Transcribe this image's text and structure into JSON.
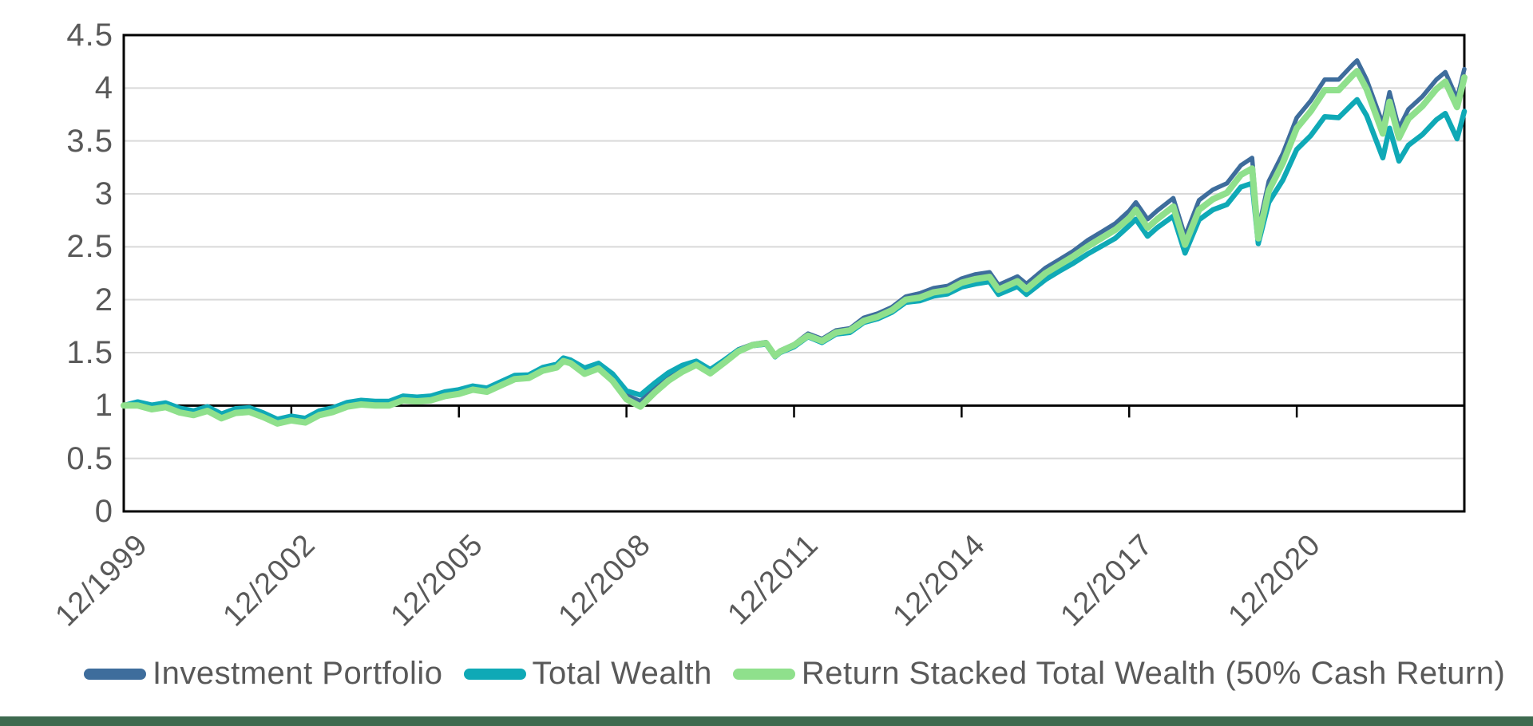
{
  "chart_data": {
    "type": "line",
    "title": "",
    "xlabel": "",
    "ylabel": "",
    "xlim": [
      1999.92,
      2023.92
    ],
    "ylim": [
      0,
      4.5
    ],
    "grid": "horizontal",
    "legend_position": "bottom",
    "axis_crosses_at_y": 1,
    "y_tick_labels": [
      "0",
      "0.5",
      "1",
      "1.5",
      "2",
      "2.5",
      "3",
      "3.5",
      "4",
      "4.5"
    ],
    "y_tick_values": [
      0,
      0.5,
      1,
      1.5,
      2,
      2.5,
      3,
      3.5,
      4,
      4.5
    ],
    "x_tick_labels": [
      "12/1999",
      "12/2002",
      "12/2005",
      "12/2008",
      "12/2011",
      "12/2014",
      "12/2017",
      "12/2020"
    ],
    "x_tick_values": [
      1999.92,
      2002.92,
      2005.92,
      2008.92,
      2011.92,
      2014.92,
      2017.92,
      2020.92
    ],
    "x": [
      1999.92,
      2000.17,
      2000.42,
      2000.67,
      2000.92,
      2001.17,
      2001.42,
      2001.67,
      2001.92,
      2002.17,
      2002.42,
      2002.67,
      2002.92,
      2003.17,
      2003.42,
      2003.67,
      2003.92,
      2004.17,
      2004.42,
      2004.67,
      2004.92,
      2005.17,
      2005.42,
      2005.67,
      2005.92,
      2006.17,
      2006.42,
      2006.67,
      2006.92,
      2007.17,
      2007.42,
      2007.67,
      2007.79,
      2007.92,
      2008.17,
      2008.42,
      2008.67,
      2008.92,
      2009.17,
      2009.42,
      2009.67,
      2009.92,
      2010.17,
      2010.42,
      2010.67,
      2010.92,
      2011.17,
      2011.42,
      2011.58,
      2011.67,
      2011.92,
      2012.17,
      2012.42,
      2012.67,
      2012.92,
      2013.17,
      2013.42,
      2013.67,
      2013.92,
      2014.17,
      2014.42,
      2014.67,
      2014.92,
      2015.17,
      2015.42,
      2015.58,
      2015.92,
      2016.08,
      2016.42,
      2016.67,
      2016.92,
      2017.17,
      2017.42,
      2017.67,
      2017.92,
      2018.04,
      2018.25,
      2018.42,
      2018.71,
      2018.92,
      2019.17,
      2019.42,
      2019.67,
      2019.92,
      2020.12,
      2020.23,
      2020.42,
      2020.67,
      2020.92,
      2021.17,
      2021.42,
      2021.67,
      2021.92,
      2022.0,
      2022.17,
      2022.46,
      2022.58,
      2022.75,
      2022.92,
      2023.17,
      2023.42,
      2023.58,
      2023.79,
      2023.92
    ],
    "series": [
      {
        "name": "Investment Portfolio",
        "color": "#3E6D9C",
        "line_width": 5.5,
        "values": [
          1.0,
          1.02,
          0.99,
          1.01,
          0.96,
          0.93,
          0.97,
          0.9,
          0.95,
          0.96,
          0.91,
          0.85,
          0.88,
          0.86,
          0.93,
          0.96,
          1.01,
          1.03,
          1.02,
          1.02,
          1.07,
          1.06,
          1.07,
          1.11,
          1.13,
          1.17,
          1.15,
          1.21,
          1.27,
          1.28,
          1.35,
          1.38,
          1.44,
          1.42,
          1.33,
          1.38,
          1.27,
          1.1,
          1.04,
          1.16,
          1.27,
          1.35,
          1.41,
          1.33,
          1.43,
          1.53,
          1.58,
          1.6,
          1.48,
          1.52,
          1.58,
          1.68,
          1.63,
          1.71,
          1.73,
          1.83,
          1.87,
          1.93,
          2.03,
          2.06,
          2.11,
          2.13,
          2.2,
          2.24,
          2.26,
          2.14,
          2.22,
          2.15,
          2.3,
          2.38,
          2.46,
          2.56,
          2.64,
          2.72,
          2.84,
          2.92,
          2.76,
          2.84,
          2.96,
          2.6,
          2.94,
          3.04,
          3.1,
          3.27,
          3.34,
          2.66,
          3.12,
          3.38,
          3.72,
          3.88,
          4.08,
          4.08,
          4.22,
          4.26,
          4.08,
          3.66,
          3.96,
          3.62,
          3.8,
          3.92,
          4.08,
          4.15,
          3.9,
          4.18
        ]
      },
      {
        "name": "Total Wealth",
        "color": "#0FA9B6",
        "line_width": 6.5,
        "values": [
          1.0,
          1.035,
          1.005,
          1.025,
          0.975,
          0.95,
          0.99,
          0.92,
          0.97,
          0.98,
          0.93,
          0.87,
          0.9,
          0.88,
          0.95,
          0.98,
          1.03,
          1.05,
          1.04,
          1.04,
          1.09,
          1.08,
          1.09,
          1.13,
          1.15,
          1.185,
          1.165,
          1.225,
          1.285,
          1.29,
          1.36,
          1.39,
          1.45,
          1.43,
          1.355,
          1.4,
          1.3,
          1.14,
          1.1,
          1.21,
          1.31,
          1.38,
          1.42,
          1.34,
          1.43,
          1.525,
          1.565,
          1.58,
          1.46,
          1.5,
          1.555,
          1.65,
          1.595,
          1.675,
          1.69,
          1.785,
          1.82,
          1.88,
          1.975,
          1.99,
          2.035,
          2.055,
          2.12,
          2.15,
          2.17,
          2.05,
          2.125,
          2.05,
          2.19,
          2.27,
          2.345,
          2.43,
          2.505,
          2.58,
          2.7,
          2.76,
          2.6,
          2.68,
          2.79,
          2.44,
          2.755,
          2.85,
          2.9,
          3.065,
          3.1,
          2.53,
          2.92,
          3.13,
          3.42,
          3.55,
          3.73,
          3.72,
          3.85,
          3.89,
          3.74,
          3.34,
          3.62,
          3.31,
          3.46,
          3.56,
          3.7,
          3.76,
          3.52,
          3.78
        ]
      },
      {
        "name": "Return Stacked Total Wealth (50% Cash Return)",
        "color": "#8FE08C",
        "line_width": 8,
        "values": [
          1.0,
          1.0,
          0.965,
          0.985,
          0.935,
          0.91,
          0.95,
          0.88,
          0.93,
          0.94,
          0.89,
          0.83,
          0.86,
          0.84,
          0.91,
          0.94,
          0.99,
          1.01,
          1.0,
          1.0,
          1.05,
          1.04,
          1.05,
          1.09,
          1.11,
          1.15,
          1.13,
          1.19,
          1.25,
          1.26,
          1.33,
          1.36,
          1.42,
          1.4,
          1.3,
          1.35,
          1.235,
          1.06,
          0.99,
          1.12,
          1.235,
          1.32,
          1.385,
          1.305,
          1.405,
          1.51,
          1.57,
          1.59,
          1.47,
          1.51,
          1.57,
          1.66,
          1.61,
          1.69,
          1.71,
          1.8,
          1.84,
          1.9,
          2.0,
          2.02,
          2.07,
          2.09,
          2.16,
          2.195,
          2.215,
          2.095,
          2.175,
          2.1,
          2.25,
          2.33,
          2.41,
          2.5,
          2.58,
          2.66,
          2.77,
          2.85,
          2.68,
          2.76,
          2.88,
          2.52,
          2.85,
          2.95,
          3.01,
          3.18,
          3.24,
          2.58,
          3.03,
          3.29,
          3.62,
          3.78,
          3.98,
          3.98,
          4.12,
          4.16,
          3.99,
          3.57,
          3.87,
          3.53,
          3.71,
          3.83,
          3.99,
          4.06,
          3.82,
          4.1
        ]
      }
    ]
  },
  "legend": {
    "items": [
      {
        "label": "Investment Portfolio",
        "color": "#3E6D9C"
      },
      {
        "label": "Total Wealth",
        "color": "#0FA9B6"
      },
      {
        "label": "Return Stacked Total Wealth (50% Cash Return)",
        "color": "#8FE08C"
      }
    ]
  },
  "colors": {
    "background": "#FFFFFF",
    "gridline": "#D9D9D9",
    "plot_border": "#000000",
    "axis_line": "#000000",
    "tick_label": "#595959",
    "legend_text": "#595959",
    "footer_bar": "#3E6A4F"
  }
}
